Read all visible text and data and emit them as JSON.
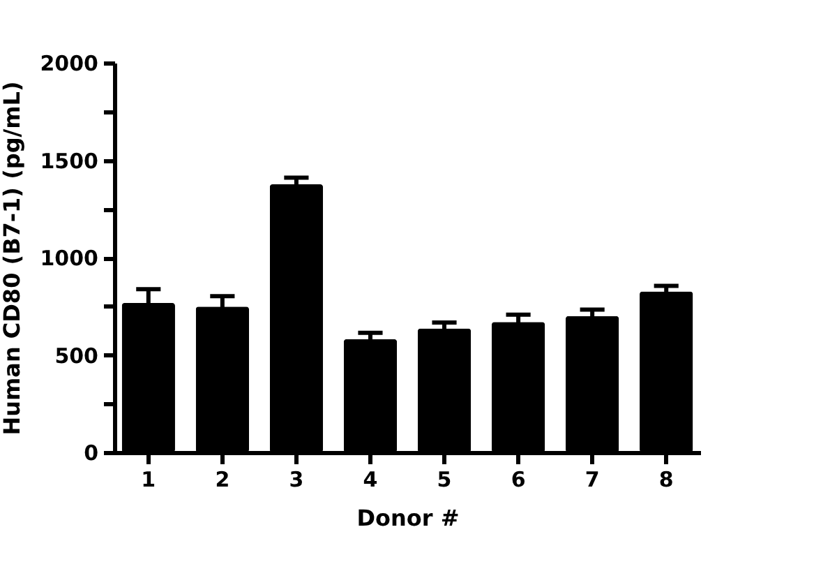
{
  "chart_data": {
    "type": "bar",
    "xlabel": "Donor #",
    "ylabel": "Human CD80 (B7-1) (pg/mL)",
    "categories": [
      "1",
      "2",
      "3",
      "4",
      "5",
      "6",
      "7",
      "8"
    ],
    "values": [
      767,
      748,
      1376,
      581,
      636,
      669,
      700,
      826
    ],
    "errors": [
      71,
      54,
      34,
      33,
      31,
      38,
      33,
      29
    ],
    "color": "#000000",
    "ylim": [
      0,
      2000
    ],
    "yticks": [
      0,
      {
        "value": 250,
        "label": null
      },
      500,
      {
        "value": 750,
        "label": null
      },
      1000,
      {
        "value": 1250,
        "label": null
      },
      1500,
      {
        "value": 1750,
        "label": null
      },
      2000
    ],
    "grid": false
  }
}
